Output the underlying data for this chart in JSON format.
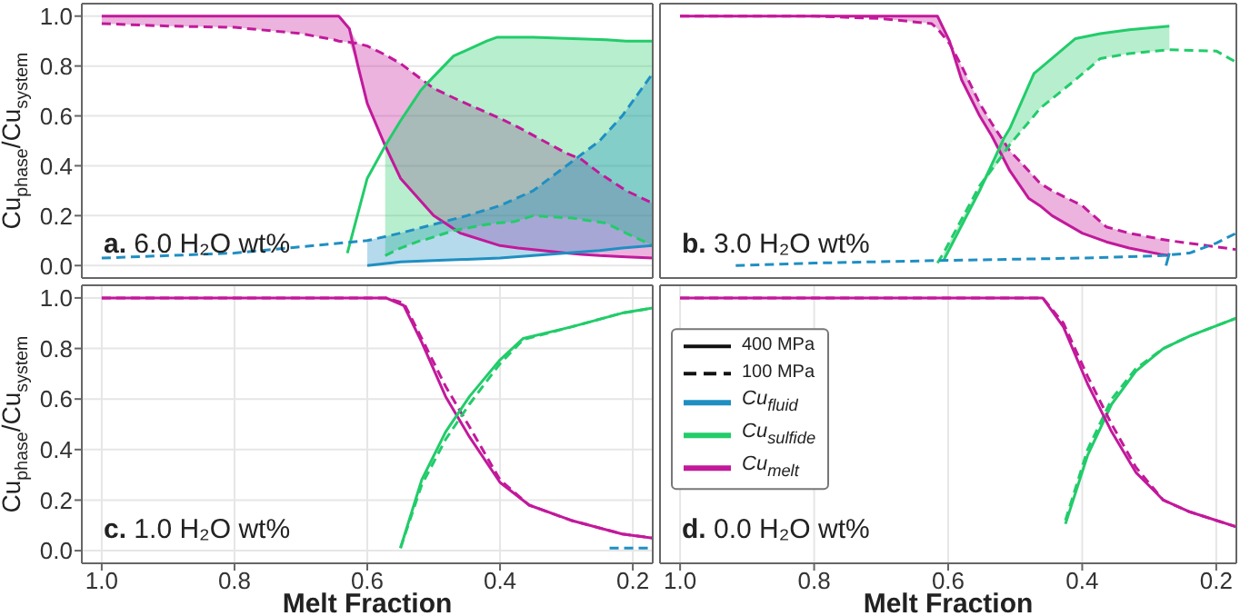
{
  "chart_data": [
    {
      "type": "line",
      "ylabel": "Cu$_{phase}$/Cu$_{system}$",
      "annotations": [
        "a. 6.0 H₂O wt%"
      ],
      "xlim": [
        1.03,
        0.17
      ],
      "ylim": [
        -0.05,
        1.05
      ],
      "xticks": [
        {
          "value": 1,
          "label": null
        },
        {
          "value": 0.8,
          "label": null
        },
        {
          "value": 0.6,
          "label": null
        },
        {
          "value": 0.4,
          "label": null
        },
        {
          "value": 0.2,
          "label": null
        }
      ],
      "yticks": [
        {
          "value": 0,
          "label": "0.0"
        },
        {
          "value": 0.2,
          "label": "0.2"
        },
        {
          "value": 0.4,
          "label": "0.4"
        },
        {
          "value": 0.6,
          "label": "0.6"
        },
        {
          "value": 0.8,
          "label": "0.8"
        },
        {
          "value": 1,
          "label": "1.0"
        }
      ],
      "grid": true,
      "tick_labels": "y",
      "series": [
        {
          "color": "#c2199b",
          "line_style": "solid",
          "x": [
            1.0,
            0.9,
            0.8,
            0.7,
            0.65,
            0.643,
            0.627,
            0.614,
            0.6,
            0.573,
            0.55,
            0.5,
            0.46,
            0.4,
            0.373,
            0.3,
            0.277,
            0.25,
            0.21,
            0.17
          ],
          "values": [
            1,
            1,
            1,
            1,
            1,
            1,
            0.95,
            0.8,
            0.65,
            0.48,
            0.35,
            0.2,
            0.13,
            0.08,
            0.07,
            0.05,
            0.045,
            0.04,
            0.035,
            0.03
          ],
          "lower": [
            0.97,
            0.96,
            0.955,
            0.93,
            0.905,
            0.9,
            0.895,
            0.8,
            0.65,
            0.48,
            0.35,
            0.2,
            0.13,
            0.08,
            0.07,
            0.05,
            0.045,
            0.04,
            0.035,
            0.03
          ],
          "upper": [
            1,
            1,
            1,
            1,
            1,
            1,
            0.95,
            0.89,
            0.88,
            0.845,
            0.81,
            0.71,
            0.66,
            0.59,
            0.555,
            0.45,
            0.425,
            0.37,
            0.3,
            0.25
          ]
        },
        {
          "color": "#c2199b",
          "line_style": "dashed",
          "x": [
            1.0,
            0.9,
            0.8,
            0.7,
            0.65,
            0.643,
            0.627,
            0.614,
            0.6,
            0.573,
            0.55,
            0.5,
            0.46,
            0.4,
            0.373,
            0.3,
            0.277,
            0.25,
            0.21,
            0.17
          ],
          "values": [
            0.97,
            0.96,
            0.955,
            0.93,
            0.905,
            0.9,
            0.895,
            0.89,
            0.88,
            0.845,
            0.81,
            0.71,
            0.66,
            0.59,
            0.555,
            0.45,
            0.425,
            0.37,
            0.3,
            0.25
          ]
        },
        {
          "color": "#22cc6a",
          "line_style": "solid",
          "x": [
            0.63,
            0.6,
            0.573,
            0.55,
            0.52,
            0.51,
            0.47,
            0.42,
            0.405,
            0.377,
            0.35,
            0.29,
            0.24,
            0.21,
            0.17
          ],
          "values": [
            0.05,
            0.35,
            0.48,
            0.58,
            0.7,
            0.73,
            0.84,
            0.9,
            0.915,
            0.915,
            0.915,
            0.91,
            0.905,
            0.9,
            0.9
          ],
          "lower": [
            null,
            null,
            0.04,
            0.07,
            0.1,
            0.106,
            0.14,
            0.165,
            0.17,
            0.177,
            0.2,
            0.19,
            0.17,
            0.13,
            0.08
          ],
          "upper": [
            null,
            null,
            0.48,
            0.58,
            0.7,
            0.73,
            0.84,
            0.9,
            0.915,
            0.915,
            0.915,
            0.91,
            0.905,
            0.9,
            0.9
          ]
        },
        {
          "color": "#22cc6a",
          "line_style": "dashed",
          "x": [
            0.573,
            0.55,
            0.52,
            0.51,
            0.47,
            0.42,
            0.405,
            0.377,
            0.35,
            0.29,
            0.24,
            0.21,
            0.17
          ],
          "values": [
            0.04,
            0.07,
            0.1,
            0.106,
            0.14,
            0.165,
            0.17,
            0.177,
            0.2,
            0.19,
            0.17,
            0.13,
            0.08
          ]
        },
        {
          "color": "#1f8fc2",
          "line_style": "solid",
          "x": [
            0.6,
            0.55,
            0.5,
            0.45,
            0.4,
            0.35,
            0.3,
            0.25,
            0.216,
            0.17
          ],
          "values": [
            0.0,
            0.015,
            0.02,
            0.025,
            0.03,
            0.04,
            0.05,
            0.06,
            0.07,
            0.08
          ],
          "lower": [
            0.0,
            0.015,
            0.02,
            0.025,
            0.03,
            0.04,
            0.05,
            0.06,
            0.07,
            0.08
          ],
          "upper": [
            0.1,
            0.13,
            0.165,
            0.2,
            0.24,
            0.3,
            0.4,
            0.5,
            0.6,
            0.77
          ]
        },
        {
          "color": "#1f8fc2",
          "line_style": "dashed",
          "x": [
            1.0,
            0.8,
            0.6,
            0.55,
            0.5,
            0.45,
            0.4,
            0.35,
            0.3,
            0.25,
            0.216,
            0.17
          ],
          "values": [
            0.03,
            0.05,
            0.1,
            0.13,
            0.165,
            0.2,
            0.24,
            0.3,
            0.4,
            0.5,
            0.6,
            0.77
          ]
        }
      ]
    },
    {
      "type": "line",
      "annotations": [
        "b. 3.0 H₂O wt%"
      ],
      "xlim": [
        1.03,
        0.17
      ],
      "ylim": [
        -0.05,
        1.05
      ],
      "xticks": [
        {
          "value": 1,
          "label": null
        },
        {
          "value": 0.8,
          "label": null
        },
        {
          "value": 0.6,
          "label": null
        },
        {
          "value": 0.4,
          "label": null
        },
        {
          "value": 0.2,
          "label": null
        }
      ],
      "yticks": [
        {
          "value": 0,
          "label": null
        },
        {
          "value": 0.2,
          "label": null
        },
        {
          "value": 0.4,
          "label": null
        },
        {
          "value": 0.6,
          "label": null
        },
        {
          "value": 0.8,
          "label": null
        },
        {
          "value": 1,
          "label": null
        }
      ],
      "grid": true,
      "tick_labels": false,
      "series": [
        {
          "color": "#c2199b",
          "line_style": "solid",
          "x": [
            1.0,
            0.8,
            0.7,
            0.625,
            0.616,
            0.598,
            0.58,
            0.553,
            0.535,
            0.508,
            0.48,
            0.463,
            0.445,
            0.4,
            0.364,
            0.33,
            0.283,
            0.27
          ],
          "values": [
            1,
            1,
            1,
            1,
            1,
            0.9,
            0.745,
            0.6,
            0.52,
            0.38,
            0.27,
            0.24,
            0.2,
            0.13,
            0.095,
            0.07,
            0.045,
            0.04
          ],
          "lower": [
            1,
            1,
            0.99,
            0.97,
            0.95,
            0.89,
            0.745,
            0.6,
            0.52,
            0.38,
            0.27,
            0.24,
            0.2,
            0.13,
            0.095,
            0.07,
            0.045,
            0.04
          ],
          "upper": [
            1,
            1,
            1,
            1,
            1,
            0.9,
            0.8,
            0.65,
            0.57,
            0.46,
            0.38,
            0.33,
            0.3,
            0.24,
            0.155,
            0.13,
            0.106,
            0.1
          ]
        },
        {
          "color": "#c2199b",
          "line_style": "dashed",
          "x": [
            1.0,
            0.8,
            0.7,
            0.625,
            0.616,
            0.598,
            0.58,
            0.553,
            0.535,
            0.508,
            0.48,
            0.463,
            0.445,
            0.4,
            0.364,
            0.33,
            0.283,
            0.27,
            0.2,
            0.17
          ],
          "values": [
            1,
            1,
            0.99,
            0.97,
            0.95,
            0.89,
            0.8,
            0.65,
            0.57,
            0.46,
            0.38,
            0.33,
            0.3,
            0.24,
            0.155,
            0.13,
            0.106,
            0.1,
            0.075,
            0.064
          ]
        },
        {
          "color": "#22cc6a",
          "line_style": "solid",
          "x": [
            0.607,
            0.553,
            0.517,
            0.508,
            0.472,
            0.463,
            0.41,
            0.373,
            0.33,
            0.27
          ],
          "values": [
            0.02,
            0.3,
            0.51,
            0.55,
            0.77,
            0.79,
            0.91,
            0.93,
            0.945,
            0.96
          ],
          "lower": [
            0.02,
            0.3,
            0.45,
            0.485,
            0.6,
            0.63,
            0.745,
            0.83,
            0.85,
            0.865
          ],
          "upper": [
            0.05,
            0.32,
            0.51,
            0.55,
            0.77,
            0.79,
            0.91,
            0.93,
            0.945,
            0.96
          ]
        },
        {
          "color": "#22cc6a",
          "line_style": "dashed",
          "x": [
            0.616,
            0.607,
            0.553,
            0.517,
            0.508,
            0.472,
            0.463,
            0.41,
            0.373,
            0.33,
            0.27,
            0.2,
            0.17
          ],
          "values": [
            0.01,
            0.05,
            0.32,
            0.45,
            0.485,
            0.6,
            0.63,
            0.745,
            0.83,
            0.85,
            0.865,
            0.86,
            0.815
          ]
        },
        {
          "color": "#1f8fc2",
          "line_style": "solid",
          "x": [
            0.275,
            0.27
          ],
          "values": [
            0.0,
            0.05
          ]
        },
        {
          "color": "#1f8fc2",
          "line_style": "dashed",
          "x": [
            0.917,
            0.8,
            0.616,
            0.4,
            0.28,
            0.24,
            0.2,
            0.17
          ],
          "values": [
            0.0,
            0.01,
            0.02,
            0.03,
            0.04,
            0.05,
            0.09,
            0.13
          ]
        }
      ]
    },
    {
      "type": "line",
      "ylabel": "Cu$_{phase}$/Cu$_{system}$",
      "xlabel": "Melt Fraction",
      "annotations": [
        "c. 1.0 H₂O wt%"
      ],
      "xlim": [
        1.03,
        0.17
      ],
      "ylim": [
        -0.05,
        1.05
      ],
      "xticks": [
        {
          "value": 1,
          "label": "1.0"
        },
        {
          "value": 0.8,
          "label": "0.8"
        },
        {
          "value": 0.6,
          "label": "0.6"
        },
        {
          "value": 0.4,
          "label": "0.4"
        },
        {
          "value": 0.2,
          "label": "0.2"
        }
      ],
      "yticks": [
        {
          "value": 0,
          "label": "0.0"
        },
        {
          "value": 0.2,
          "label": "0.2"
        },
        {
          "value": 0.4,
          "label": "0.4"
        },
        {
          "value": 0.6,
          "label": "0.6"
        },
        {
          "value": 0.8,
          "label": "0.8"
        },
        {
          "value": 1,
          "label": "1.0"
        }
      ],
      "grid": true,
      "series": [
        {
          "color": "#c2199b",
          "line_style": "solid",
          "x": [
            1.0,
            0.8,
            0.6,
            0.572,
            0.545,
            0.518,
            0.482,
            0.446,
            0.4,
            0.356,
            0.293,
            0.216,
            0.17
          ],
          "values": [
            1,
            1,
            1,
            1,
            0.97,
            0.825,
            0.61,
            0.45,
            0.27,
            0.18,
            0.12,
            0.066,
            0.05
          ]
        },
        {
          "color": "#c2199b",
          "line_style": "dashed",
          "x": [
            1.0,
            0.8,
            0.6,
            0.572,
            0.545,
            0.518,
            0.482,
            0.446,
            0.4,
            0.356,
            0.293,
            0.216,
            0.17
          ],
          "values": [
            1,
            1,
            1,
            1,
            0.98,
            0.84,
            0.65,
            0.49,
            0.28,
            0.18,
            0.12,
            0.066,
            0.05
          ]
        },
        {
          "color": "#22cc6a",
          "line_style": "solid",
          "x": [
            0.55,
            0.518,
            0.482,
            0.446,
            0.4,
            0.365,
            0.293,
            0.216,
            0.17
          ],
          "values": [
            0.01,
            0.28,
            0.47,
            0.61,
            0.755,
            0.84,
            0.885,
            0.94,
            0.96
          ]
        },
        {
          "color": "#22cc6a",
          "line_style": "dashed",
          "x": [
            0.55,
            0.518,
            0.482,
            0.446,
            0.4,
            0.365,
            0.293,
            0.216,
            0.17
          ],
          "values": [
            0.01,
            0.26,
            0.44,
            0.58,
            0.74,
            0.835,
            0.885,
            0.94,
            0.96
          ]
        },
        {
          "color": "#1f8fc2",
          "line_style": "dashed",
          "x": [
            0.235,
            0.17
          ],
          "values": [
            0.01,
            0.01
          ]
        }
      ]
    },
    {
      "type": "line",
      "xlabel": "Melt Fraction",
      "annotations": [
        "d. 0.0 H₂O wt%",
        "400 MPa",
        "100 MPa"
      ],
      "xlim": [
        1.03,
        0.17
      ],
      "ylim": [
        -0.05,
        1.05
      ],
      "xticks": [
        {
          "value": 1,
          "label": "1.0"
        },
        {
          "value": 0.8,
          "label": "0.8"
        },
        {
          "value": 0.6,
          "label": "0.6"
        },
        {
          "value": 0.4,
          "label": "0.4"
        },
        {
          "value": 0.2,
          "label": "0.2"
        }
      ],
      "yticks": [
        {
          "value": 0,
          "label": null
        },
        {
          "value": 0.2,
          "label": null
        },
        {
          "value": 0.4,
          "label": null
        },
        {
          "value": 0.6,
          "label": null
        },
        {
          "value": 0.8,
          "label": null
        },
        {
          "value": 1,
          "label": null
        }
      ],
      "grid": true,
      "tick_labels": "x",
      "legend": "left",
      "series": [
        {
          "name": "Cu$_{fluid}$",
          "color": "#1f8fc2",
          "line_style": "solid"
        },
        {
          "name": "Cu$_{sulfide}$",
          "color": "#22cc6a",
          "line_style": "solid",
          "x": [
            0.425,
            0.392,
            0.356,
            0.32,
            0.279,
            0.239,
            0.17
          ],
          "values": [
            0.106,
            0.377,
            0.58,
            0.71,
            0.8,
            0.85,
            0.92
          ]
        },
        {
          "color": "#22cc6a",
          "line_style": "dashed",
          "x": [
            0.425,
            0.392,
            0.356,
            0.32,
            0.279,
            0.239,
            0.17
          ],
          "values": [
            0.12,
            0.4,
            0.6,
            0.72,
            0.8,
            0.85,
            0.92
          ]
        },
        {
          "name": "Cu$_{melt}$",
          "color": "#c2199b",
          "line_style": "solid",
          "x": [
            1.0,
            0.8,
            0.6,
            0.459,
            0.428,
            0.392,
            0.356,
            0.32,
            0.279,
            0.239,
            0.17
          ],
          "values": [
            1,
            1,
            1,
            1,
            0.885,
            0.66,
            0.47,
            0.31,
            0.2,
            0.153,
            0.094
          ]
        },
        {
          "color": "#c2199b",
          "line_style": "dashed",
          "x": [
            1.0,
            0.8,
            0.6,
            0.459,
            0.428,
            0.392,
            0.356,
            0.32,
            0.279,
            0.239,
            0.17
          ],
          "values": [
            1,
            1,
            1,
            1,
            0.9,
            0.69,
            0.5,
            0.33,
            0.2,
            0.153,
            0.094
          ]
        }
      ]
    }
  ]
}
